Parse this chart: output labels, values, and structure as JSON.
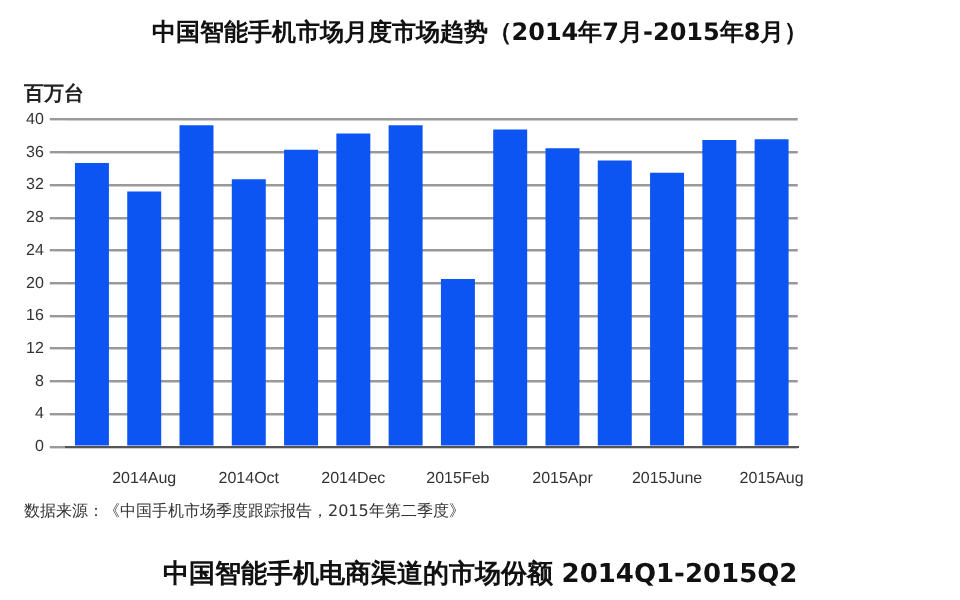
{
  "chart_data": {
    "type": "bar",
    "title": "中国智能手机市场月度市场趋势（2014年7月-2015年8月）",
    "ylabel": "百万台",
    "categories": [
      null,
      "2014Aug",
      null,
      "2014Oct",
      null,
      "2014Dec",
      null,
      "2015Feb",
      null,
      "2015Apr",
      null,
      "2015June",
      null,
      "2015Aug"
    ],
    "values": [
      34.7,
      31.2,
      39.3,
      32.7,
      36.3,
      38.3,
      39.3,
      20.5,
      38.8,
      36.5,
      35.0,
      33.5,
      37.5,
      37.6
    ],
    "color": "#0d55f2",
    "ylim": [
      0,
      40
    ],
    "yticks": [
      0,
      4,
      8,
      12,
      16,
      20,
      24,
      28,
      32,
      36,
      40
    ],
    "grid": "y",
    "legend": false,
    "annotations": [
      "数据来源：《中国手机市场季度跟踪报告，2015年第二季度》",
      "中国智能手机电商渠道的市场份额 2014Q1-2015Q2"
    ]
  }
}
